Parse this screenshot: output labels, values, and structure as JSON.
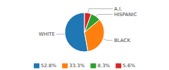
{
  "chart_data": {
    "type": "pie",
    "categories": [
      "WHITE",
      "BLACK",
      "HISPANIC",
      "A.I."
    ],
    "values": [
      52.8,
      33.3,
      8.3,
      5.6
    ],
    "value_labels": [
      "52.8%",
      "33.3%",
      "8.3%",
      "5.6%"
    ],
    "legend": "bottom"
  }
}
